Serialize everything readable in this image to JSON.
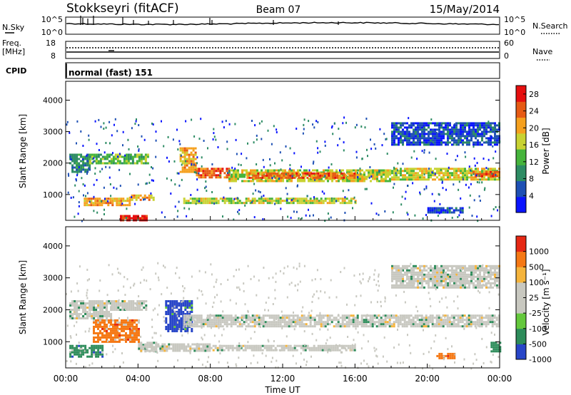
{
  "header": {
    "station": "Stokkseyri (fitACF)",
    "beam": "Beam 07",
    "date": "15/May/2014"
  },
  "panels": {
    "noise": {
      "left_label": "N.Sky",
      "right_label": "N.Search",
      "left_ticks": [
        "10^5",
        "10^0"
      ],
      "right_ticks": [
        "10^5",
        "10^0"
      ]
    },
    "freq": {
      "left_label_1": "Freq.",
      "left_label_2": "[MHz]",
      "right_label": "Nave",
      "left_ticks": [
        "18",
        "8"
      ],
      "right_ticks": [
        "60",
        "0"
      ]
    },
    "cpid": {
      "label": "CPID",
      "text": "normal (fast) 151"
    }
  },
  "chart_data": [
    {
      "type": "heatmap",
      "title": "",
      "ylabel": "Slant Range [km]",
      "xlabel": "",
      "yticks": [
        "1000",
        "2000",
        "3000",
        "4000"
      ],
      "ylim": [
        180,
        4600
      ],
      "colorbar": {
        "label": "Power [dB]",
        "ticks": [
          "4",
          "8",
          "12",
          "16",
          "20",
          "24",
          "28"
        ],
        "range": [
          0,
          30
        ],
        "colors": [
          "#0a14ff",
          "#1e50b4",
          "#2d8c64",
          "#46b43c",
          "#c8d232",
          "#f5a01e",
          "#e65a14",
          "#e60f0f"
        ]
      },
      "echo_regions": [
        {
          "t0": 0.2,
          "t1": 1.3,
          "r0": 1700,
          "r1": 2300,
          "level": 2
        },
        {
          "t0": 1.3,
          "t1": 4.5,
          "r0": 2000,
          "r1": 2300,
          "level": 3
        },
        {
          "t0": 1.0,
          "t1": 3.5,
          "r0": 650,
          "r1": 900,
          "level": 5
        },
        {
          "t0": 3.5,
          "t1": 5.0,
          "r0": 800,
          "r1": 1000,
          "level": 5
        },
        {
          "t0": 3.0,
          "t1": 4.5,
          "r0": 200,
          "r1": 350,
          "level": 7
        },
        {
          "t0": 6.3,
          "t1": 7.2,
          "r0": 1700,
          "r1": 2500,
          "level": 5
        },
        {
          "t0": 7.2,
          "t1": 9.0,
          "r0": 1550,
          "r1": 1850,
          "level": 6
        },
        {
          "t0": 9.0,
          "t1": 18.0,
          "r0": 1450,
          "r1": 1800,
          "level": 4
        },
        {
          "t0": 10.0,
          "t1": 16.0,
          "r0": 1500,
          "r1": 1700,
          "level": 6
        },
        {
          "t0": 18.0,
          "t1": 24.0,
          "r0": 1450,
          "r1": 1850,
          "level": 4
        },
        {
          "t0": 22.5,
          "t1": 24.0,
          "r0": 1550,
          "r1": 1750,
          "level": 6
        },
        {
          "t0": 6.5,
          "t1": 16.0,
          "r0": 700,
          "r1": 900,
          "level": 4
        },
        {
          "t0": 18.0,
          "t1": 24.0,
          "r0": 2600,
          "r1": 3300,
          "level": 1
        },
        {
          "t0": 20.0,
          "t1": 22.0,
          "r0": 400,
          "r1": 600,
          "level": 1
        }
      ]
    },
    {
      "type": "heatmap",
      "title": "",
      "ylabel": "Slant Range [km]",
      "xlabel": "Time UT",
      "yticks": [
        "1000",
        "2000",
        "3000",
        "4000"
      ],
      "ylim": [
        180,
        4600
      ],
      "xticks": [
        "00:00",
        "04:00",
        "08:00",
        "12:00",
        "16:00",
        "20:00",
        "00:00"
      ],
      "xlim": [
        0,
        24
      ],
      "colorbar": {
        "label": "Velocity [m s⁻¹]",
        "ticks": [
          "1000",
          "500",
          "100",
          "25",
          "-25",
          "-100",
          "-500",
          "-1000"
        ],
        "range": [
          -1000,
          1000
        ],
        "colors": [
          "#2846c8",
          "#2d8c5a",
          "#64c83c",
          "#c8c8c0",
          "#c8c8c0",
          "#f5b43c",
          "#f57814",
          "#e62814"
        ]
      },
      "echo_regions": [
        {
          "t0": 0.2,
          "t1": 2.5,
          "r0": 1700,
          "r1": 2300,
          "level": 3
        },
        {
          "t0": 2.5,
          "t1": 4.5,
          "r0": 2000,
          "r1": 2300,
          "level": 3
        },
        {
          "t0": 0.2,
          "t1": 2.0,
          "r0": 500,
          "r1": 900,
          "level": 1
        },
        {
          "t0": 4.0,
          "t1": 5.0,
          "r0": 700,
          "r1": 1000,
          "level": 3
        },
        {
          "t0": 1.5,
          "t1": 4.0,
          "r0": 1000,
          "r1": 1700,
          "level": 6
        },
        {
          "t0": 5.5,
          "t1": 7.0,
          "r0": 1300,
          "r1": 2300,
          "level": 0
        },
        {
          "t0": 6.5,
          "t1": 24.0,
          "r0": 1450,
          "r1": 1850,
          "level": 3
        },
        {
          "t0": 4.0,
          "t1": 8.0,
          "r0": 700,
          "r1": 950,
          "level": 3
        },
        {
          "t0": 8.0,
          "t1": 16.0,
          "r0": 700,
          "r1": 900,
          "level": 3
        },
        {
          "t0": 20.5,
          "t1": 21.5,
          "r0": 500,
          "r1": 650,
          "level": 6
        },
        {
          "t0": 23.5,
          "t1": 24.0,
          "r0": 700,
          "r1": 1000,
          "level": 1
        },
        {
          "t0": 18.0,
          "t1": 24.0,
          "r0": 2700,
          "r1": 3400,
          "level": 3
        }
      ]
    }
  ]
}
